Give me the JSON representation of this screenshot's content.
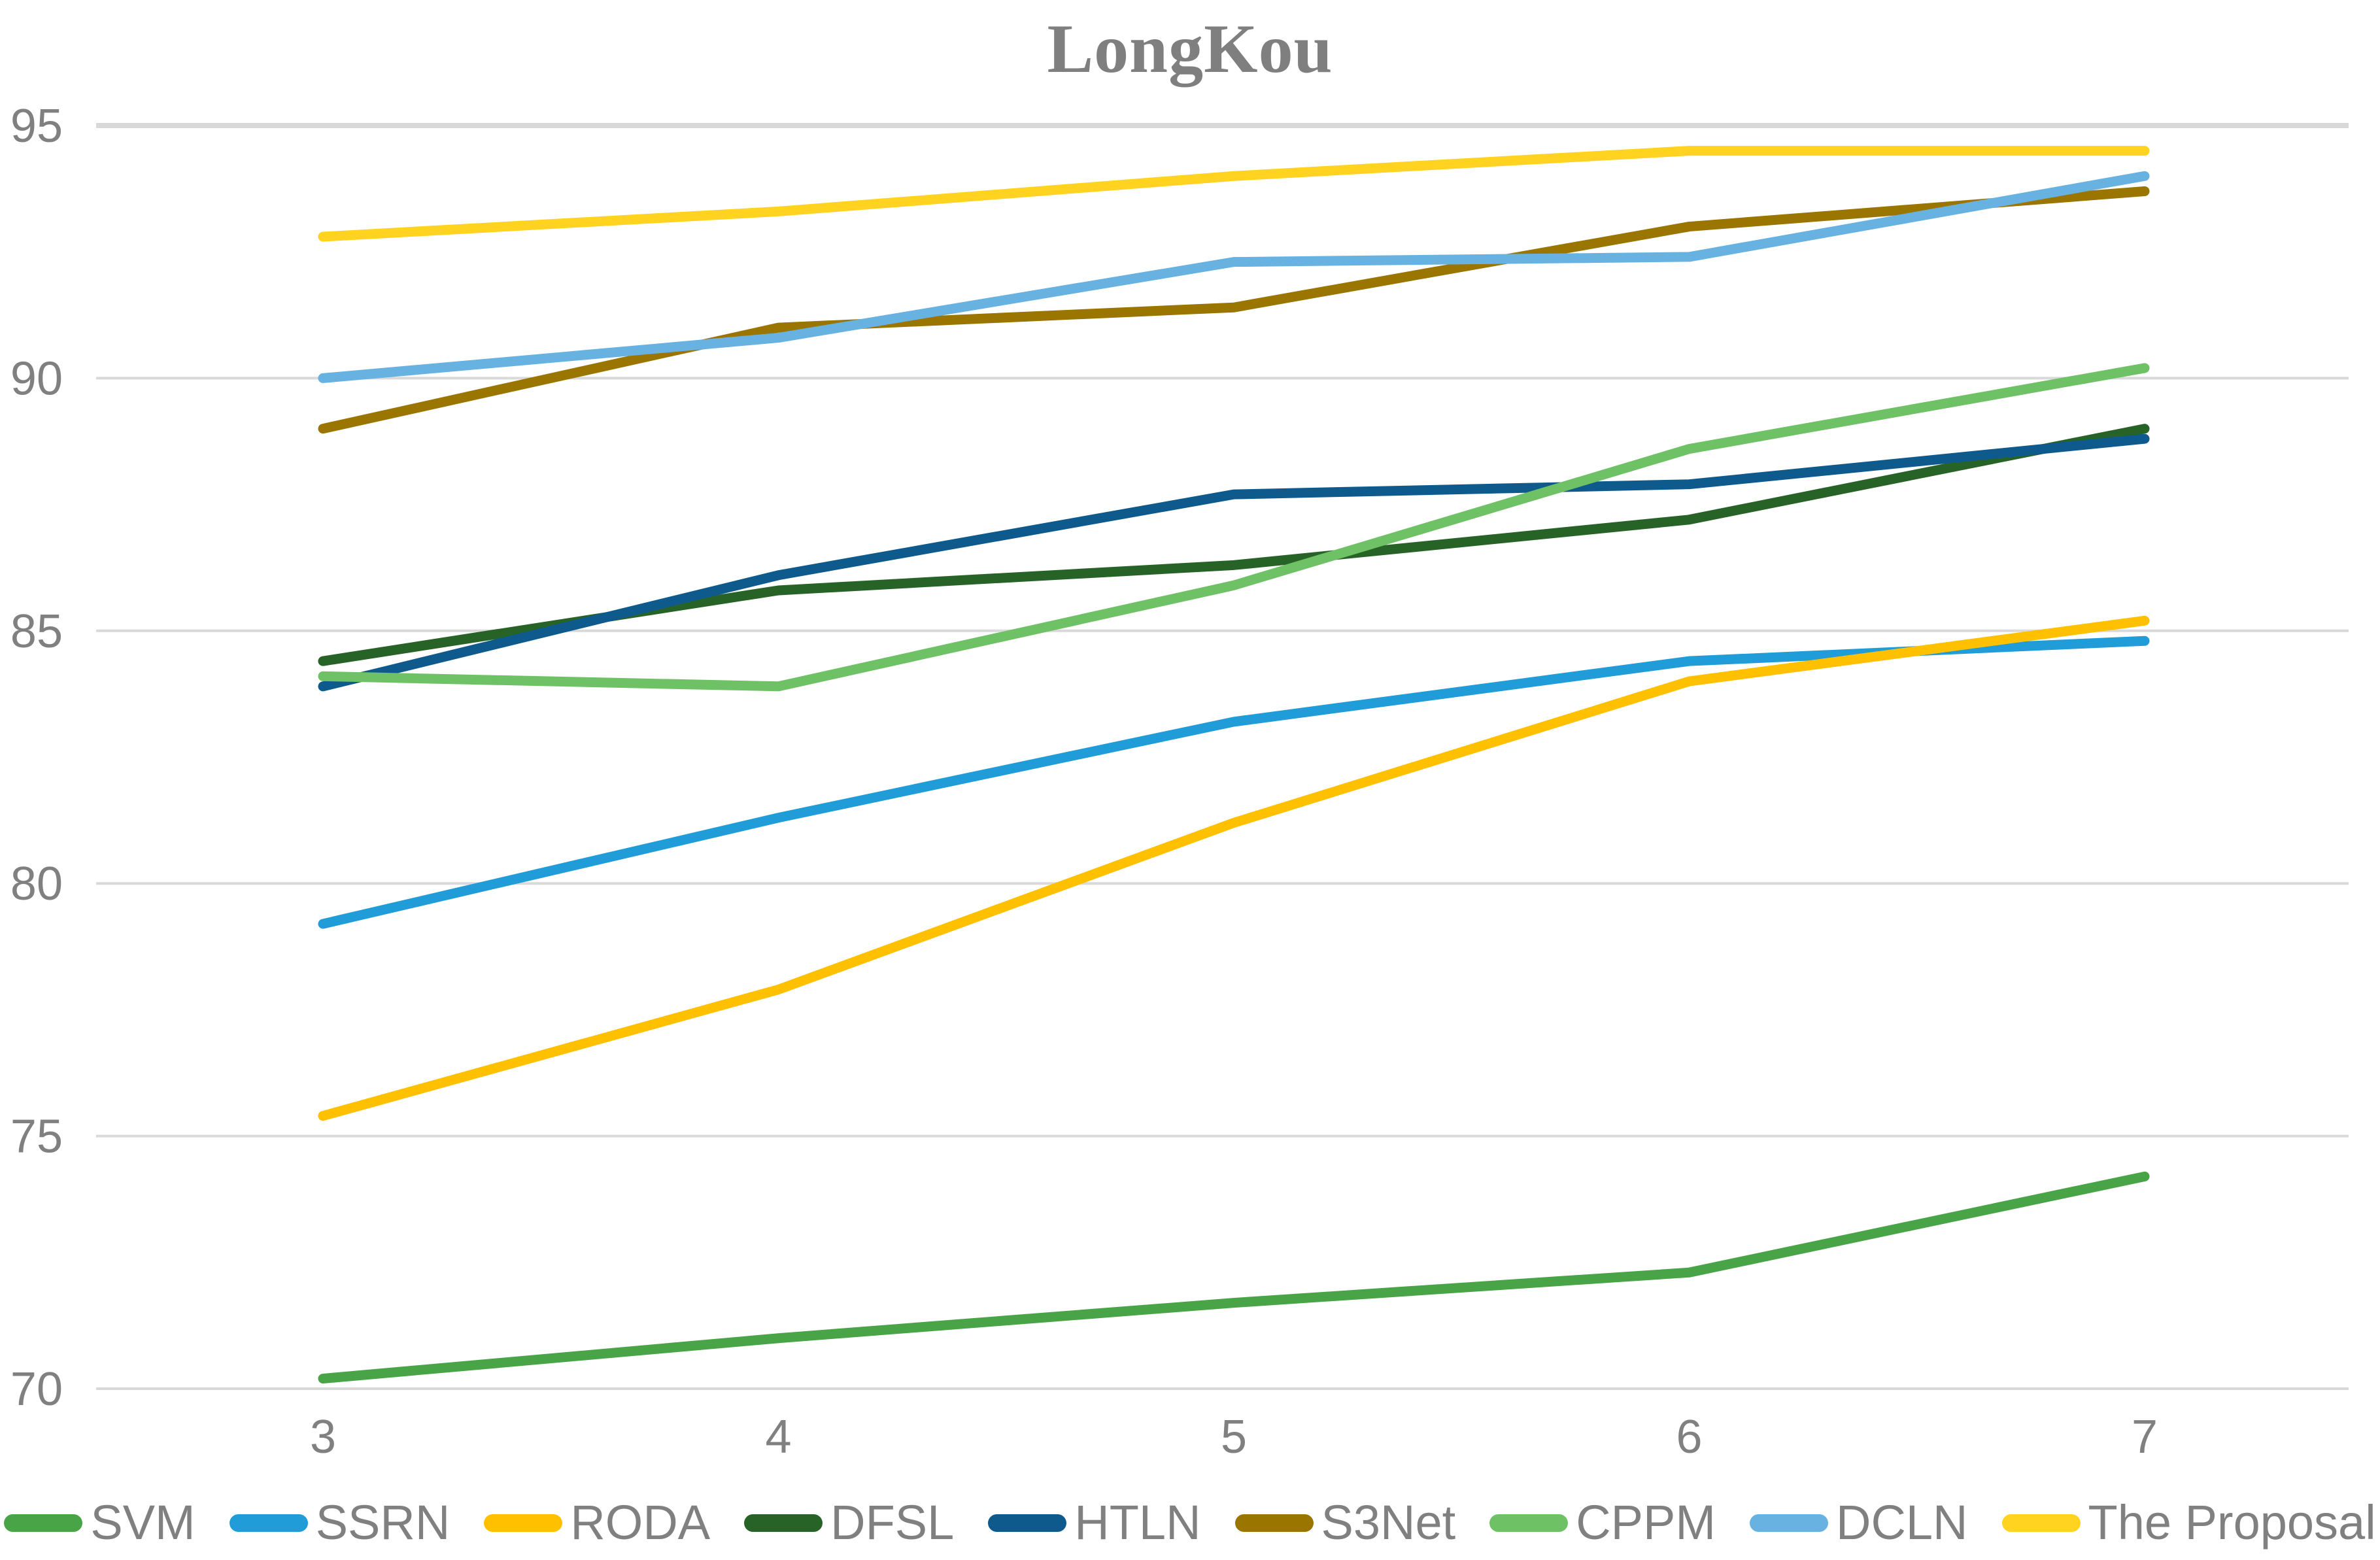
{
  "chart_data": {
    "type": "line",
    "title": "LongKou",
    "xlabel": "",
    "ylabel": "",
    "x": [
      3,
      4,
      5,
      6,
      7
    ],
    "ylim": [
      70,
      95
    ],
    "yticks": [
      70,
      75,
      80,
      85,
      90,
      95
    ],
    "grid": true,
    "legend_position": "bottom",
    "axis_text_color": "#808080",
    "gridline_color": "#d9d9d9",
    "title_color": "#7f7f7f",
    "background_color": "#ffffff",
    "series": [
      {
        "name": "SVM",
        "color": "#49A447",
        "values": [
          70.2,
          71.0,
          71.7,
          72.3,
          74.2
        ]
      },
      {
        "name": "SSRN",
        "color": "#209CD8",
        "values": [
          79.2,
          81.3,
          83.2,
          84.4,
          84.8
        ]
      },
      {
        "name": "RODA",
        "color": "#FFC000",
        "values": [
          75.4,
          77.9,
          81.2,
          84.0,
          85.2
        ]
      },
      {
        "name": "DFSL",
        "color": "#276327",
        "values": [
          84.4,
          85.8,
          86.3,
          87.2,
          89.0
        ]
      },
      {
        "name": "HTLN",
        "color": "#0E5A8D",
        "values": [
          83.9,
          86.1,
          87.7,
          87.9,
          88.8
        ]
      },
      {
        "name": "S3Net",
        "color": "#9A7500",
        "values": [
          89.0,
          91.0,
          91.4,
          93.0,
          93.7
        ]
      },
      {
        "name": "CPPM",
        "color": "#6EC165",
        "values": [
          84.1,
          83.9,
          85.9,
          88.6,
          90.2
        ]
      },
      {
        "name": "DCLN",
        "color": "#68B2E2",
        "values": [
          90.0,
          90.8,
          92.3,
          92.4,
          94.0
        ]
      },
      {
        "name": "The Proposal",
        "color": "#FFD320",
        "values": [
          92.8,
          93.3,
          94.0,
          94.5,
          94.5
        ]
      }
    ]
  }
}
